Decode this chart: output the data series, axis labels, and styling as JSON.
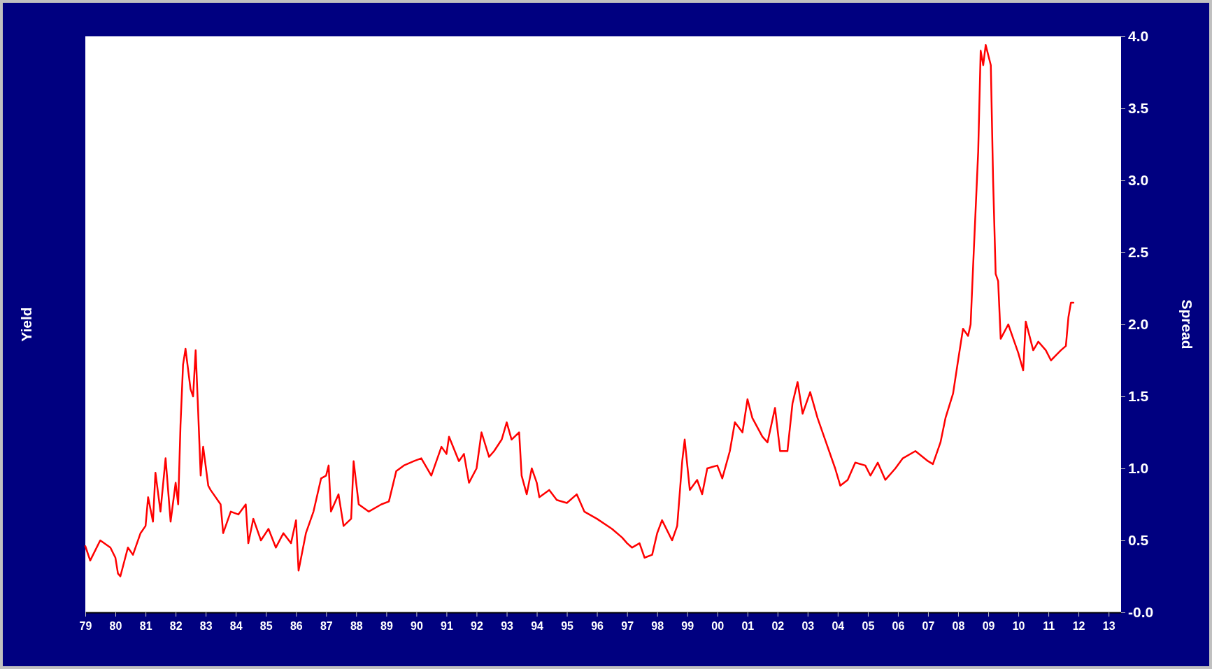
{
  "chart_data": {
    "type": "line",
    "ylabel": "Yield",
    "y2label": "Spread",
    "x": [
      "1979-01",
      "1979-03",
      "1979-07",
      "1979-11",
      "1980-01",
      "1980-02",
      "1980-03",
      "1980-06",
      "1980-08",
      "1980-11",
      "1981-01",
      "1981-02",
      "1981-04",
      "1981-05",
      "1981-07",
      "1981-09",
      "1981-11",
      "1982-01",
      "1982-02",
      "1982-03",
      "1982-04",
      "1982-05",
      "1982-07",
      "1982-08",
      "1982-09",
      "1982-10",
      "1982-11",
      "1982-12",
      "1983-02",
      "1983-03",
      "1983-07",
      "1983-08",
      "1983-11",
      "1984-02",
      "1984-05",
      "1984-06",
      "1984-08",
      "1984-11",
      "1985-02",
      "1985-05",
      "1985-08",
      "1985-11",
      "1986-01",
      "1986-02",
      "1986-05",
      "1986-08",
      "1986-11",
      "1987-01",
      "1987-02",
      "1987-03",
      "1987-06",
      "1987-08",
      "1987-11",
      "1987-12",
      "1988-02",
      "1988-06",
      "1988-11",
      "1989-02",
      "1989-05",
      "1989-08",
      "1989-12",
      "1990-03",
      "1990-07",
      "1990-11",
      "1991-01",
      "1991-02",
      "1991-06",
      "1991-08",
      "1991-10",
      "1992-01",
      "1992-03",
      "1992-06",
      "1992-08",
      "1992-11",
      "1993-01",
      "1993-03",
      "1993-06",
      "1993-07",
      "1993-09",
      "1993-11",
      "1994-01",
      "1994-02",
      "1994-06",
      "1994-09",
      "1995-01",
      "1995-05",
      "1995-08",
      "1996-01",
      "1996-07",
      "1996-11",
      "1997-01",
      "1997-03",
      "1997-06",
      "1997-08",
      "1997-11",
      "1998-01",
      "1998-03",
      "1998-07",
      "1998-09",
      "1998-11",
      "1998-12",
      "1999-02",
      "1999-05",
      "1999-07",
      "1999-09",
      "2000-01",
      "2000-03",
      "2000-06",
      "2000-08",
      "2000-11",
      "2001-01",
      "2001-03",
      "2001-07",
      "2001-09",
      "2001-12",
      "2002-02",
      "2002-05",
      "2002-07",
      "2002-09",
      "2002-11",
      "2003-02",
      "2003-05",
      "2003-08",
      "2003-12",
      "2004-02",
      "2004-05",
      "2004-08",
      "2004-12",
      "2005-02",
      "2005-05",
      "2005-08",
      "2005-12",
      "2006-03",
      "2006-08",
      "2007-01",
      "2007-03",
      "2007-06",
      "2007-08",
      "2007-11",
      "2008-01",
      "2008-03",
      "2008-05",
      "2008-06",
      "2008-07",
      "2008-09",
      "2008-10",
      "2008-11",
      "2008-12",
      "2009-02",
      "2009-03",
      "2009-04",
      "2009-05",
      "2009-06",
      "2009-09",
      "2009-11",
      "2010-01",
      "2010-03",
      "2010-04",
      "2010-07",
      "2010-09",
      "2010-12",
      "2011-02",
      "2011-06",
      "2011-08",
      "2011-09",
      "2011-10",
      "2011-11"
    ],
    "series": [
      {
        "color": "#ff0000",
        "axis": "y2",
        "values": [
          0.46,
          0.36,
          0.5,
          0.45,
          0.38,
          0.27,
          0.25,
          0.45,
          0.4,
          0.55,
          0.6,
          0.8,
          0.63,
          0.97,
          0.7,
          1.07,
          0.63,
          0.9,
          0.75,
          1.3,
          1.72,
          1.83,
          1.55,
          1.5,
          1.82,
          1.4,
          0.95,
          1.15,
          0.88,
          0.85,
          0.75,
          0.55,
          0.7,
          0.68,
          0.75,
          0.48,
          0.65,
          0.5,
          0.58,
          0.45,
          0.55,
          0.48,
          0.64,
          0.29,
          0.55,
          0.7,
          0.93,
          0.95,
          1.02,
          0.7,
          0.82,
          0.6,
          0.65,
          1.05,
          0.75,
          0.7,
          0.75,
          0.77,
          0.98,
          1.02,
          1.05,
          1.07,
          0.95,
          1.15,
          1.1,
          1.22,
          1.05,
          1.1,
          0.9,
          1.0,
          1.25,
          1.08,
          1.12,
          1.2,
          1.32,
          1.2,
          1.25,
          0.95,
          0.82,
          1.0,
          0.9,
          0.8,
          0.85,
          0.78,
          0.76,
          0.82,
          0.7,
          0.65,
          0.58,
          0.52,
          0.48,
          0.45,
          0.48,
          0.38,
          0.4,
          0.55,
          0.64,
          0.5,
          0.6,
          1.05,
          1.2,
          0.85,
          0.92,
          0.82,
          1.0,
          1.02,
          0.93,
          1.12,
          1.32,
          1.25,
          1.48,
          1.35,
          1.22,
          1.18,
          1.42,
          1.12,
          1.12,
          1.45,
          1.6,
          1.38,
          1.53,
          1.35,
          1.2,
          1.0,
          0.88,
          0.92,
          1.04,
          1.02,
          0.95,
          1.04,
          0.92,
          1.0,
          1.07,
          1.12,
          1.05,
          1.03,
          1.18,
          1.35,
          1.52,
          1.75,
          1.97,
          1.92,
          2.0,
          2.4,
          3.2,
          3.9,
          3.8,
          3.94,
          3.8,
          3.0,
          2.35,
          2.3,
          1.9,
          2.0,
          1.9,
          1.8,
          1.68,
          2.02,
          1.82,
          1.88,
          1.82,
          1.75,
          1.82,
          1.85,
          2.05,
          2.15,
          2.15
        ]
      }
    ],
    "xlim": [
      "1979-01",
      "2013-06"
    ],
    "xticks": [
      {
        "value": "1979",
        "label": "79"
      },
      {
        "value": "1980",
        "label": "80"
      },
      {
        "value": "1981",
        "label": "81"
      },
      {
        "value": "1982",
        "label": "82"
      },
      {
        "value": "1983",
        "label": "83"
      },
      {
        "value": "1984",
        "label": "84"
      },
      {
        "value": "1985",
        "label": "85"
      },
      {
        "value": "1986",
        "label": "86"
      },
      {
        "value": "1987",
        "label": "87"
      },
      {
        "value": "1988",
        "label": "88"
      },
      {
        "value": "1989",
        "label": "89"
      },
      {
        "value": "1990",
        "label": "90"
      },
      {
        "value": "1991",
        "label": "91"
      },
      {
        "value": "1992",
        "label": "92"
      },
      {
        "value": "1993",
        "label": "93"
      },
      {
        "value": "1994",
        "label": "94"
      },
      {
        "value": "1995",
        "label": "95"
      },
      {
        "value": "1996",
        "label": "96"
      },
      {
        "value": "1997",
        "label": "97"
      },
      {
        "value": "1998",
        "label": "98"
      },
      {
        "value": "1999",
        "label": "99"
      },
      {
        "value": "2000",
        "label": "00"
      },
      {
        "value": "2001",
        "label": "01"
      },
      {
        "value": "2002",
        "label": "02"
      },
      {
        "value": "2003",
        "label": "03"
      },
      {
        "value": "2004",
        "label": "04"
      },
      {
        "value": "2005",
        "label": "05"
      },
      {
        "value": "2006",
        "label": "06"
      },
      {
        "value": "2007",
        "label": "07"
      },
      {
        "value": "2008",
        "label": "08"
      },
      {
        "value": "2009",
        "label": "09"
      },
      {
        "value": "2010",
        "label": "10"
      },
      {
        "value": "2011",
        "label": "11"
      },
      {
        "value": "2012",
        "label": "12"
      },
      {
        "value": "2013",
        "label": "13"
      }
    ],
    "y2lim": [
      0,
      4
    ],
    "y2ticks": [
      {
        "value": 0,
        "label": "-0.0"
      },
      {
        "value": 0.5,
        "label": "0.5"
      },
      {
        "value": 1,
        "label": "1.0"
      },
      {
        "value": 1.5,
        "label": "1.5"
      },
      {
        "value": 2,
        "label": "2.0"
      },
      {
        "value": 2.5,
        "label": "2.5"
      },
      {
        "value": 3,
        "label": "3.0"
      },
      {
        "value": 3.5,
        "label": "3.5"
      },
      {
        "value": 4,
        "label": "4.0"
      }
    ]
  }
}
